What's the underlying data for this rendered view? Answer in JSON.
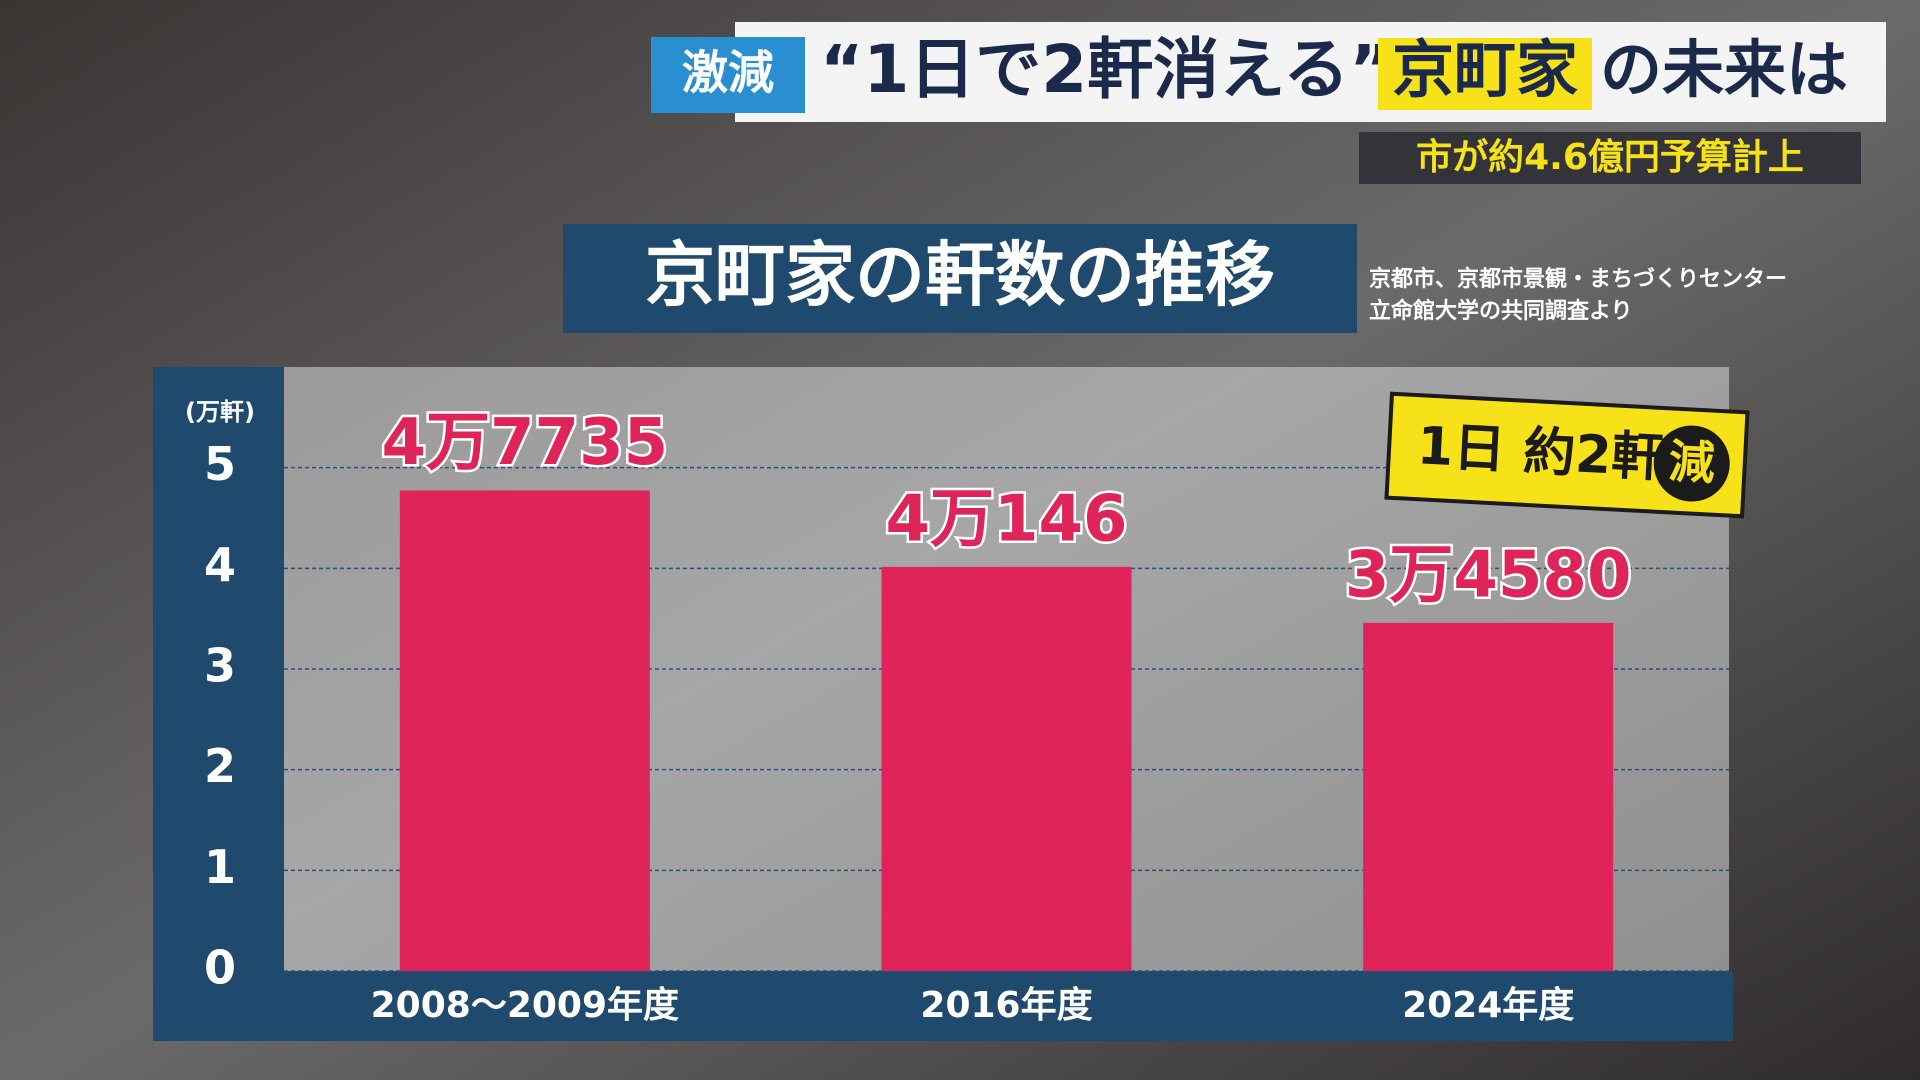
{
  "header": {
    "tag": "激減",
    "quote": "“1日で2軒消える”",
    "highlight": "京町家",
    "rest": "の未来は",
    "subtitle": "市が約4.6億円予算計上"
  },
  "chart_data": {
    "type": "bar",
    "title": "京町家の軒数の推移",
    "source": [
      "京都市、京都市景観・まちづくりセンター",
      "立命館大学の共同調査より"
    ],
    "y_label": "(万軒)",
    "categories": [
      "2008～2009年度",
      "2016年度",
      "2024年度"
    ],
    "values": [
      4.7735,
      4.0146,
      3.458
    ],
    "value_labels": [
      "4万7735",
      "4万146",
      "3万4580"
    ],
    "color": "#de2458",
    "ylim": [
      0,
      6
    ],
    "yticks": [
      0,
      1,
      2,
      3,
      4,
      5
    ],
    "grid": true,
    "annotation": {
      "text": "1日 約2軒",
      "mark": "減"
    }
  }
}
